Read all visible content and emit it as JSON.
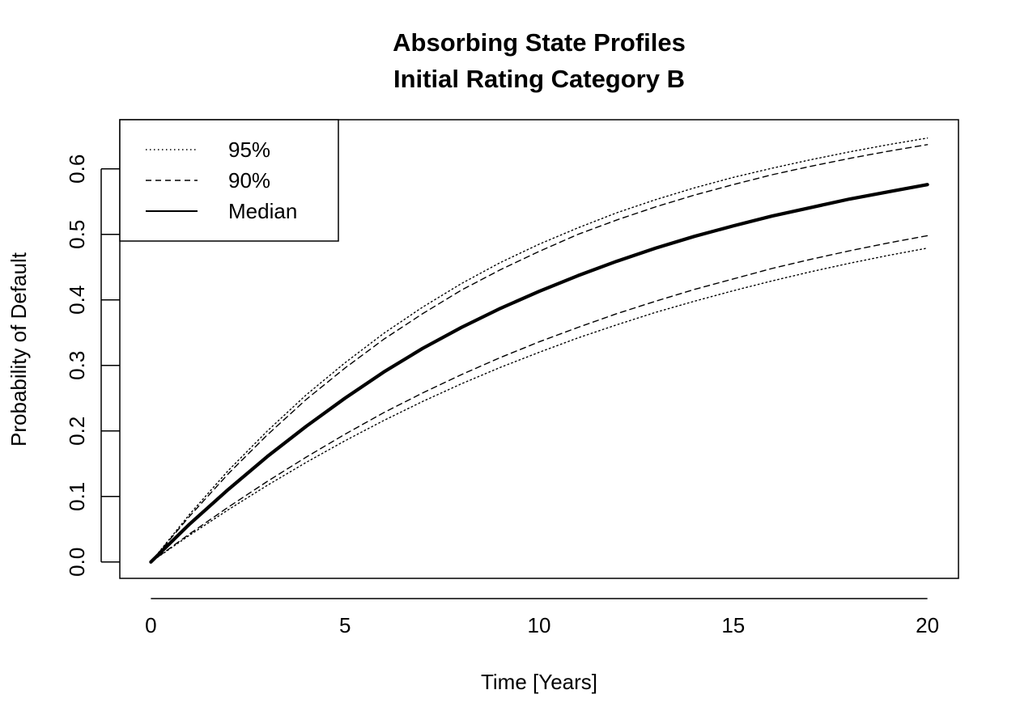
{
  "chart_data": {
    "type": "line",
    "title": "Absorbing State Profiles",
    "subtitle": "Initial Rating Category B",
    "xlabel": "Time [Years]",
    "ylabel": "Probability of Default",
    "xlim": [
      -0.8,
      20.8
    ],
    "ylim": [
      -0.025,
      0.675
    ],
    "xticks": [
      0,
      5,
      10,
      15,
      20
    ],
    "xtick_labels": [
      "0",
      "5",
      "10",
      "15",
      "20"
    ],
    "yticks": [
      0.0,
      0.1,
      0.2,
      0.3,
      0.4,
      0.5,
      0.6
    ],
    "ytick_labels": [
      "0.0",
      "0.1",
      "0.2",
      "0.3",
      "0.4",
      "0.5",
      "0.6"
    ],
    "grid": false,
    "legend_position": "top-left",
    "legend": [
      {
        "label": "95%",
        "style": "dotted"
      },
      {
        "label": "90%",
        "style": "dashed"
      },
      {
        "label": "Median",
        "style": "solid"
      }
    ],
    "x": [
      0,
      1,
      2,
      3,
      4,
      5,
      6,
      7,
      8,
      9,
      10,
      11,
      12,
      13,
      14,
      15,
      16,
      17,
      18,
      19,
      20
    ],
    "series": [
      {
        "legend_label": "95%",
        "style": "dotted",
        "bound": "upper",
        "values": [
          0,
          0.073,
          0.14,
          0.2,
          0.255,
          0.304,
          0.349,
          0.389,
          0.425,
          0.457,
          0.485,
          0.51,
          0.533,
          0.553,
          0.571,
          0.587,
          0.601,
          0.614,
          0.626,
          0.637,
          0.647
        ]
      },
      {
        "legend_label": "90%",
        "style": "dashed",
        "bound": "upper",
        "values": [
          0,
          0.07,
          0.135,
          0.194,
          0.248,
          0.296,
          0.34,
          0.379,
          0.415,
          0.446,
          0.474,
          0.5,
          0.522,
          0.542,
          0.56,
          0.576,
          0.591,
          0.604,
          0.616,
          0.627,
          0.637
        ]
      },
      {
        "legend_label": "Median",
        "style": "solid",
        "bound": "median",
        "values": [
          0,
          0.058,
          0.111,
          0.161,
          0.207,
          0.25,
          0.29,
          0.326,
          0.358,
          0.387,
          0.413,
          0.437,
          0.459,
          0.479,
          0.497,
          0.513,
          0.528,
          0.541,
          0.554,
          0.565,
          0.576
        ]
      },
      {
        "legend_label": "90%",
        "style": "dashed",
        "bound": "lower",
        "values": [
          0,
          0.043,
          0.084,
          0.123,
          0.16,
          0.195,
          0.228,
          0.258,
          0.286,
          0.312,
          0.336,
          0.358,
          0.379,
          0.398,
          0.416,
          0.432,
          0.448,
          0.462,
          0.475,
          0.487,
          0.498
        ]
      },
      {
        "legend_label": "95%",
        "style": "dotted",
        "bound": "lower",
        "values": [
          0,
          0.041,
          0.08,
          0.117,
          0.152,
          0.185,
          0.216,
          0.245,
          0.272,
          0.297,
          0.32,
          0.342,
          0.362,
          0.381,
          0.398,
          0.414,
          0.429,
          0.443,
          0.456,
          0.468,
          0.479
        ]
      }
    ]
  }
}
